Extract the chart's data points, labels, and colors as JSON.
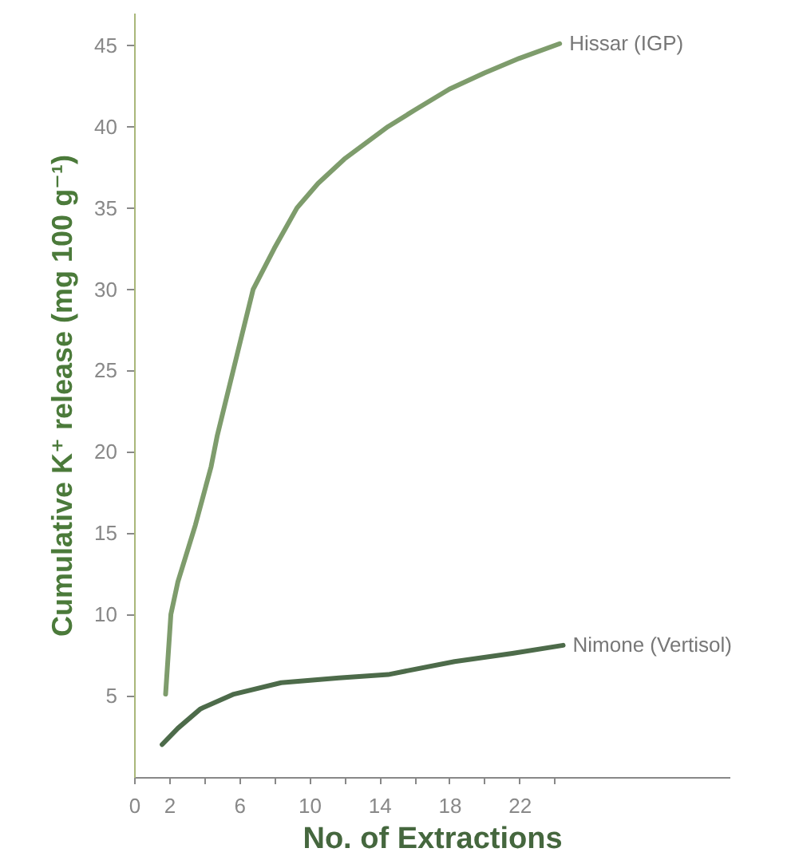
{
  "chart_data": {
    "type": "line",
    "xlabel": "No. of Extractions",
    "ylabel": "Cumulative K⁺ release (mg 100 g⁻¹)",
    "xlim": [
      0,
      34
    ],
    "ylim": [
      0,
      47
    ],
    "xticks": [
      0,
      2,
      {
        "value": 4,
        "label": null
      },
      6,
      {
        "value": 8,
        "label": null
      },
      10,
      {
        "value": 12,
        "label": null
      },
      14,
      {
        "value": 16,
        "label": null
      },
      18,
      {
        "value": 20,
        "label": null
      },
      22,
      {
        "value": 24,
        "label": null
      }
    ],
    "yticks": [
      5,
      10,
      15,
      20,
      25,
      30,
      35,
      40,
      45
    ],
    "grid": false,
    "line_style": "solid",
    "series": [
      {
        "name": "Hissar (IGP)",
        "color": "#7e9c6c",
        "x": [
          1.8,
          2.1,
          2.5,
          3.5,
          4.4,
          4.75,
          6,
          6.8,
          8,
          9.3,
          10.5,
          12,
          14.5,
          16,
          18,
          20,
          22,
          24.3
        ],
        "values": [
          5.1,
          10,
          12,
          15.5,
          19.1,
          21,
          26.5,
          30,
          32.5,
          35,
          36.5,
          38,
          40,
          41,
          42.3,
          43.3,
          44.2,
          45.1
        ]
      },
      {
        "name": "Nimone (Vertisol)",
        "color": "#4d6b4a",
        "x": [
          1.6,
          2.5,
          3.8,
          5.7,
          8.4,
          11.7,
          14.5,
          18.3,
          21.6,
          24.5
        ],
        "values": [
          2.0,
          3.0,
          4.2,
          5.1,
          5.8,
          6.1,
          6.3,
          7.1,
          7.6,
          8.1
        ]
      }
    ]
  }
}
